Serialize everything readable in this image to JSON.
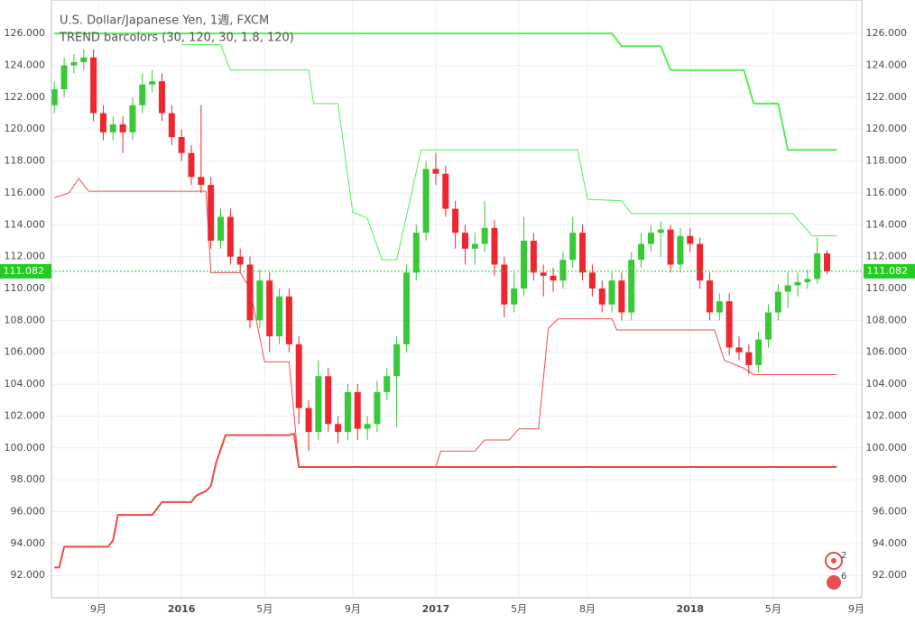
{
  "chart_data": {
    "type": "candlestick",
    "title": "U.S. Dollar/Japanese Yen, 1週, FXCM",
    "subtitle": "TREND barcolors (30, 120, 30, 1.8, 120)",
    "up_color": "#38c838",
    "down_color": "#ee2630",
    "xlim": [
      -26.6,
      139.1
    ],
    "ylim": [
      90.6,
      128.1
    ],
    "grid": true,
    "xticks": [
      {
        "value": -17,
        "label": "9月"
      },
      {
        "value": 0,
        "label": "2016"
      },
      {
        "value": 17,
        "label": "5月"
      },
      {
        "value": 35,
        "label": "9月"
      },
      {
        "value": 52,
        "label": "2017"
      },
      {
        "value": 69,
        "label": "5月"
      },
      {
        "value": 83,
        "label": "8月"
      },
      {
        "value": 104,
        "label": "2018"
      },
      {
        "value": 121,
        "label": "5月"
      },
      {
        "value": 138,
        "label": "9月"
      }
    ],
    "yticks": [
      {
        "value": 92,
        "label": "92.000"
      },
      {
        "value": 94,
        "label": "94.000"
      },
      {
        "value": 96,
        "label": "96.000"
      },
      {
        "value": 98,
        "label": "98.000"
      },
      {
        "value": 100,
        "label": "100.000"
      },
      {
        "value": 102,
        "label": "102.000"
      },
      {
        "value": 104,
        "label": "104.000"
      },
      {
        "value": 106,
        "label": "106.000"
      },
      {
        "value": 108,
        "label": "108.000"
      },
      {
        "value": 110,
        "label": "110.000"
      },
      {
        "value": 112,
        "label": "112.000"
      },
      {
        "value": 114,
        "label": "114.000"
      },
      {
        "value": 116,
        "label": "116.000"
      },
      {
        "value": 118,
        "label": "118.000"
      },
      {
        "value": 120,
        "label": "120.000"
      },
      {
        "value": 122,
        "label": "122.000"
      },
      {
        "value": 124,
        "label": "124.000"
      },
      {
        "value": 126,
        "label": "126.000"
      }
    ],
    "last_price": 111.082,
    "last_price_color": "#22cc22",
    "badges": [
      "2",
      "6"
    ],
    "x": [
      -26,
      -24,
      -22,
      -20,
      -18,
      -16,
      -14,
      -12,
      -10,
      -8,
      -6,
      -4,
      -2,
      0,
      2,
      4,
      6,
      8,
      10,
      12,
      14,
      16,
      18,
      20,
      22,
      24,
      26,
      28,
      30,
      32,
      34,
      36,
      38,
      40,
      42,
      44,
      46,
      48,
      50,
      52,
      54,
      56,
      58,
      60,
      62,
      64,
      66,
      68,
      70,
      72,
      74,
      76,
      78,
      80,
      82,
      84,
      86,
      88,
      90,
      92,
      94,
      96,
      98,
      100,
      102,
      104,
      106,
      108,
      110,
      112,
      114,
      116,
      118,
      120,
      122,
      124,
      126,
      128,
      130,
      132
    ],
    "open": [
      121.5,
      122.5,
      124,
      124.2,
      124.5,
      121,
      119.8,
      120.3,
      119.8,
      121.5,
      122.8,
      123,
      121,
      119.5,
      118.5,
      117,
      116.5,
      113,
      114.5,
      112,
      111.5,
      108,
      110.5,
      107,
      109.5,
      106.5,
      102.5,
      101,
      104.5,
      101.5,
      101,
      103.5,
      101.2,
      101.5,
      103.5,
      104.5,
      106.5,
      111,
      113.5,
      117.5,
      117.2,
      115,
      113.5,
      112.5,
      112.8,
      113.8,
      111.5,
      109,
      110,
      113,
      111,
      110.8,
      110.5,
      111.8,
      113.5,
      111,
      110,
      109,
      110.5,
      108.5,
      111.8,
      112.8,
      113.5,
      113.7,
      111.5,
      113.3,
      112.8,
      110.5,
      108.5,
      109.2,
      106.3,
      106,
      105.2,
      106.8,
      108.5,
      109.8,
      110.2,
      110.4,
      110.6,
      112.2
    ],
    "high": [
      123,
      124.5,
      124.7,
      125,
      125,
      121.5,
      120.8,
      120.8,
      122,
      123.5,
      123.7,
      123.5,
      121.5,
      120,
      119,
      121.5,
      117,
      115,
      115,
      112.5,
      112,
      111.2,
      111,
      110,
      110,
      107,
      103,
      105.5,
      105,
      102,
      104,
      104,
      102,
      104.2,
      105,
      107,
      111.5,
      114,
      118,
      118.5,
      117.7,
      115.5,
      114,
      113.5,
      115.5,
      114.3,
      112,
      111,
      114.5,
      113.5,
      111.5,
      111.3,
      112.3,
      114.5,
      114,
      111.5,
      110.5,
      111,
      111,
      112.3,
      113.5,
      114,
      114.2,
      114,
      113.8,
      113.8,
      113.2,
      111,
      109.7,
      109.7,
      107,
      106.5,
      107.3,
      109,
      110.3,
      111,
      111,
      111.2,
      113.2,
      112.4
    ],
    "low": [
      121,
      122,
      123.5,
      123.7,
      120.5,
      119.3,
      119.3,
      118.5,
      119.3,
      121,
      122.3,
      120.5,
      119,
      118,
      116.5,
      116,
      112.5,
      112.5,
      111.5,
      111,
      107.5,
      107.5,
      106,
      106.5,
      106,
      101.5,
      99.8,
      100.5,
      101,
      100.3,
      100.5,
      100.5,
      100.5,
      101,
      103,
      101.3,
      106,
      110.5,
      113,
      116.5,
      114.5,
      112.5,
      111.5,
      111.5,
      112.3,
      110.8,
      108.2,
      108.5,
      109.5,
      110.5,
      109.5,
      109.8,
      110,
      111.3,
      110.5,
      109.5,
      108.5,
      108.5,
      108,
      108,
      111.3,
      112.3,
      112,
      111,
      111,
      112.3,
      110,
      108,
      108,
      105.8,
      105.5,
      104.6,
      104.7,
      106.3,
      108,
      108.8,
      109.5,
      110,
      110.3,
      110.9
    ],
    "close": [
      122.5,
      124,
      124.2,
      124.5,
      121,
      119.8,
      120.3,
      119.8,
      121.5,
      122.8,
      123,
      121,
      119.5,
      118.5,
      117,
      116.5,
      113,
      114.5,
      112,
      111.5,
      108,
      110.5,
      107,
      109.5,
      106.5,
      102.5,
      101,
      104.5,
      101.5,
      101,
      103.5,
      101.2,
      101.5,
      103.5,
      104.5,
      106.5,
      111,
      113.5,
      117.5,
      117.2,
      115,
      113.5,
      112.5,
      112.8,
      113.8,
      111.5,
      109,
      110,
      113,
      111,
      110.8,
      110.5,
      111.8,
      113.5,
      111,
      110,
      109,
      110.5,
      108.5,
      111.8,
      112.8,
      113.5,
      113.7,
      111.5,
      113.3,
      112.8,
      110.5,
      108.5,
      109.2,
      106.3,
      106,
      105.2,
      106.8,
      108.5,
      109.8,
      110.2,
      110.4,
      110.6,
      112.2,
      111.08
    ],
    "lines": [
      {
        "color": "#55ee55",
        "width": 2,
        "x": [
          -26,
          88,
          90,
          98,
          100,
          115,
          117,
          122,
          124,
          134
        ],
        "values": [
          126,
          126,
          125.2,
          125.2,
          123.7,
          123.7,
          121.6,
          121.6,
          118.7,
          118.7
        ]
      },
      {
        "color": "#55ee55",
        "width": 1,
        "x": [
          0,
          8,
          10,
          26,
          27,
          32,
          35,
          38,
          41,
          44,
          49,
          81,
          83,
          90,
          92,
          125,
          129,
          134
        ],
        "values": [
          125.3,
          125.3,
          123.7,
          123.7,
          121.6,
          121.6,
          114.8,
          114.4,
          111.8,
          111.8,
          118.7,
          118.7,
          115.6,
          115.5,
          114.7,
          114.7,
          113.3,
          113.3
        ]
      },
      {
        "color": "#f05050",
        "width": 1,
        "x": [
          -26,
          -23,
          -21,
          -19,
          5,
          6,
          12,
          14,
          17,
          22,
          24,
          52,
          53,
          60,
          62,
          67,
          69,
          73,
          75,
          77,
          88,
          89,
          109,
          111,
          115,
          117,
          134
        ],
        "values": [
          115.7,
          116,
          116.9,
          116.1,
          116.1,
          111,
          111,
          110,
          105.4,
          105.4,
          98.8,
          98.8,
          99.8,
          99.8,
          100.5,
          100.5,
          101.2,
          101.2,
          107.5,
          108.1,
          108.1,
          107.4,
          107.4,
          105.5,
          105,
          104.6,
          104.6
        ]
      },
      {
        "color": "#f04848",
        "width": 2,
        "x": [
          -26,
          -25,
          -24,
          -15,
          -14,
          -13,
          -6,
          -4,
          2,
          3,
          5,
          6,
          7,
          9,
          22,
          23,
          24,
          134
        ],
        "values": [
          92.5,
          92.5,
          93.8,
          93.8,
          94.2,
          95.8,
          95.8,
          96.6,
          96.6,
          97,
          97.3,
          97.6,
          99,
          100.8,
          100.8,
          100.9,
          98.8,
          98.8
        ]
      }
    ]
  }
}
